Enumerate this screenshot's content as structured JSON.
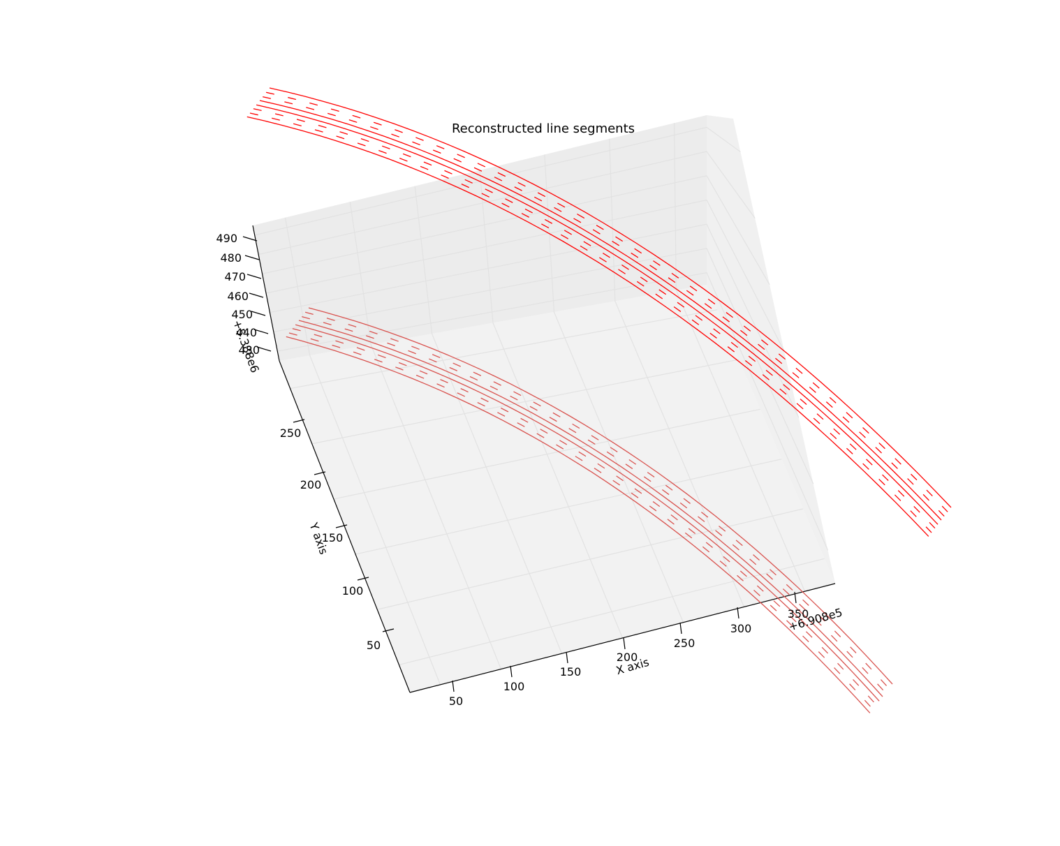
{
  "chart_data": {
    "type": "line3d",
    "title": "Reconstructed line segments",
    "xlabel": "X axis",
    "ylabel": "Y axis",
    "zlabel": "",
    "x_offset_text": "+6.908e5",
    "z_offset_text": "+5.388e6",
    "x_ticks": [
      "50",
      "100",
      "150",
      "200",
      "250",
      "300",
      "350"
    ],
    "y_ticks": [
      "50",
      "100",
      "150",
      "200",
      "250"
    ],
    "z_ticks": [
      "430",
      "440",
      "450",
      "460",
      "470",
      "480",
      "490"
    ],
    "grid": true,
    "pane_color": "#f2f2f2",
    "grid_color": "#e2e2e2",
    "series": [
      {
        "group": "upper",
        "color": "#ff0000",
        "line_styles": [
          "solid",
          "dashed",
          "dashed",
          "solid",
          "solid",
          "dashed",
          "dashed",
          "solid"
        ]
      },
      {
        "group": "lower (projection on floor)",
        "color": "#d9534f",
        "line_styles": [
          "solid",
          "dashed",
          "dashed",
          "solid",
          "solid",
          "dashed",
          "dashed",
          "solid"
        ]
      }
    ]
  }
}
